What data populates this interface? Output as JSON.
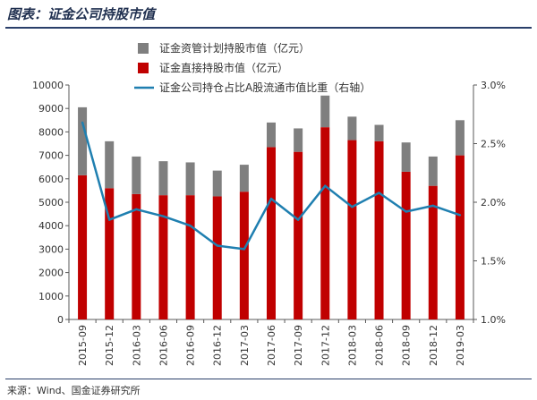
{
  "figure": {
    "title": "图表：证金公司持股市值",
    "source": "来源：Wind、国金证券研究所"
  },
  "colors": {
    "direct": "#c00000",
    "asset_mgmt": "#7f7f7f",
    "ratio_line": "#1f7fb0",
    "axis": "#595959",
    "title": "#1f2f4f"
  },
  "chart_data": {
    "type": "bar",
    "stacked": true,
    "categories": [
      "2015-09",
      "2015-12",
      "2016-03",
      "2016-06",
      "2016-09",
      "2016-12",
      "2017-03",
      "2017-06",
      "2017-09",
      "2017-12",
      "2018-03",
      "2018-06",
      "2018-09",
      "2018-12",
      "2019-03"
    ],
    "series": [
      {
        "name": "证金直接持股市值（亿元）",
        "type": "bar",
        "axis": "left",
        "values": [
          6150,
          5600,
          5350,
          5300,
          5300,
          5250,
          5450,
          7350,
          7150,
          8200,
          7650,
          7600,
          6300,
          5700,
          7000
        ]
      },
      {
        "name": "证金资管计划持股市值（亿元）",
        "type": "bar",
        "axis": "left",
        "values": [
          2900,
          2000,
          1600,
          1450,
          1400,
          1100,
          1150,
          1050,
          1000,
          1350,
          1000,
          700,
          1250,
          1250,
          1500
        ]
      },
      {
        "name": "证金公司持仓占比A股流通市值比重（右轴）",
        "type": "line",
        "axis": "right",
        "values": [
          2.68,
          1.85,
          1.94,
          1.88,
          1.8,
          1.63,
          1.6,
          2.03,
          1.85,
          2.14,
          1.96,
          2.08,
          1.92,
          1.97,
          1.89
        ]
      }
    ],
    "ylim_left": [
      0,
      10000
    ],
    "yticks_left": [
      "0",
      "1000",
      "2000",
      "3000",
      "4000",
      "5000",
      "6000",
      "7000",
      "8000",
      "9000",
      "10000"
    ],
    "ylim_right": [
      1.0,
      3.0
    ],
    "yticks_right": [
      "1.0%",
      "1.5%",
      "2.0%",
      "2.5%",
      "3.0%"
    ],
    "legend_position": "top-left, inside plot",
    "grid": false,
    "xlabel": "",
    "ylabel": ""
  }
}
